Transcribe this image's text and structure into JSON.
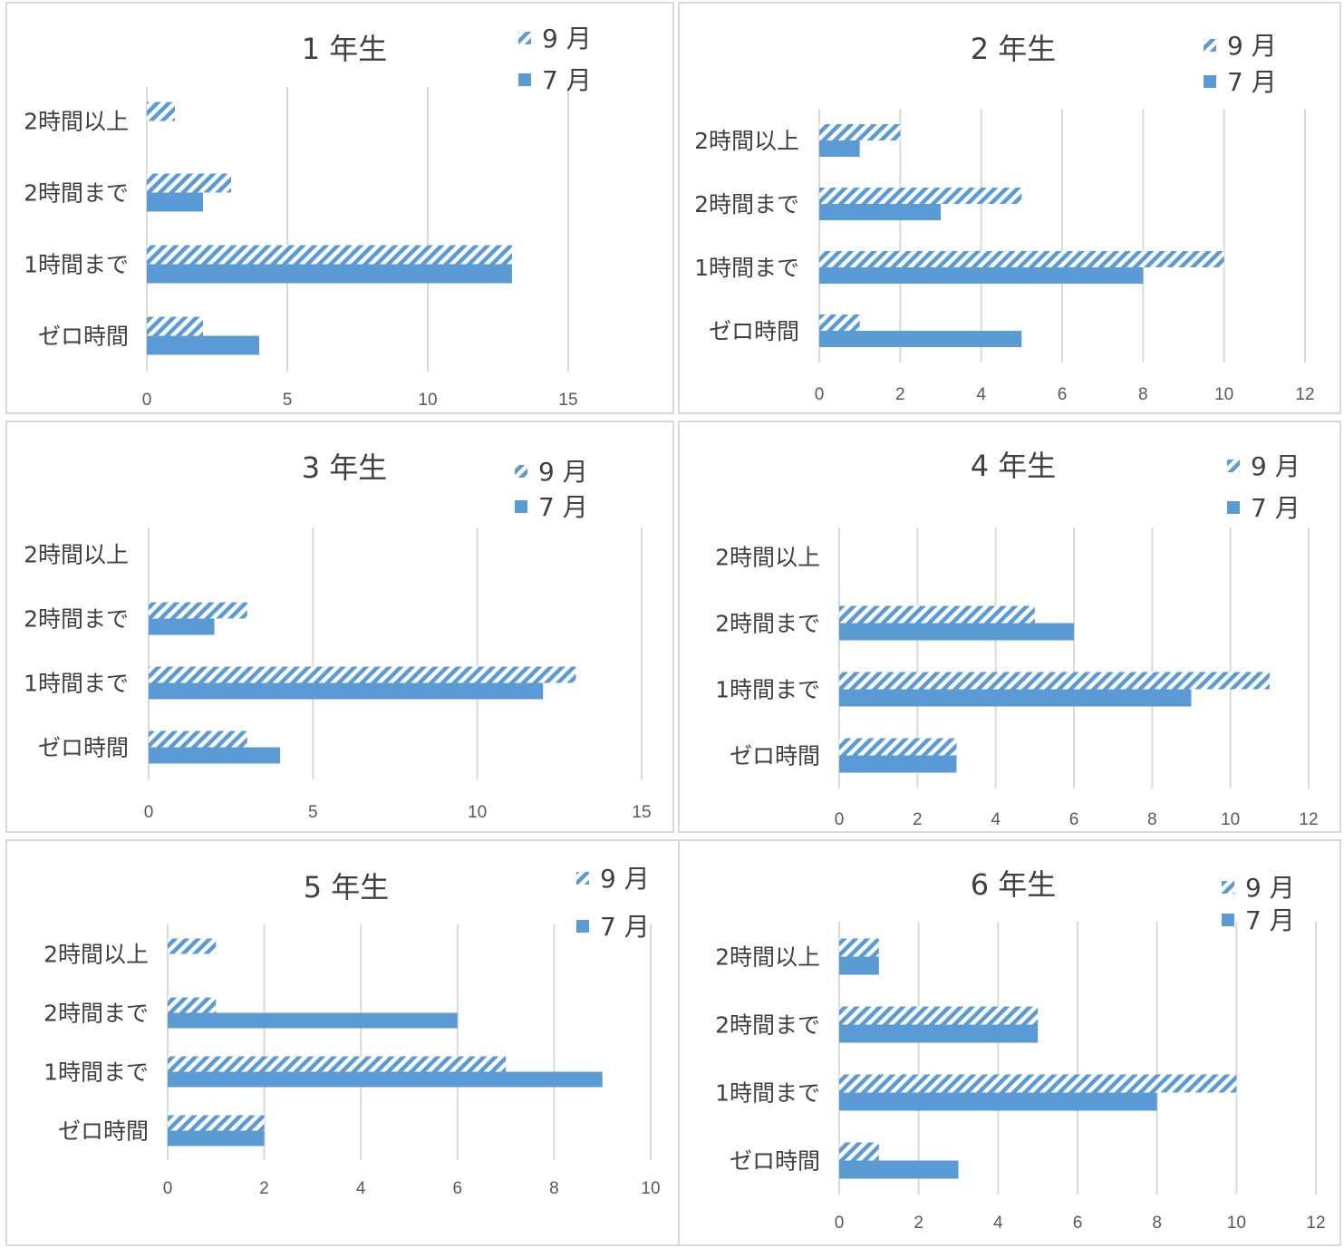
{
  "colors": {
    "bar": "#5b9bd5",
    "grid": "#d9d9d9",
    "text": "#404040"
  },
  "legend": {
    "hatched": {
      "label": "9 月",
      "pattern": "diagonal-hatch"
    },
    "solid": {
      "label": "7 月",
      "pattern": "solid"
    }
  },
  "chart_data": [
    {
      "type": "bar",
      "orientation": "horizontal",
      "title": "1 年生",
      "categories": [
        "ゼロ時間",
        "1時間まで",
        "2時間まで",
        "2時間以上"
      ],
      "series": [
        {
          "name": "9 月",
          "values": [
            2,
            13,
            3,
            1
          ]
        },
        {
          "name": "7 月",
          "values": [
            4,
            13,
            2,
            0
          ]
        }
      ],
      "xticks": [
        "0",
        "5",
        "10",
        "15"
      ],
      "xlim": [
        0,
        15
      ],
      "grid": true,
      "legend_position": "top-right"
    },
    {
      "type": "bar",
      "orientation": "horizontal",
      "title": "2 年生",
      "categories": [
        "ゼロ時間",
        "1時間まで",
        "2時間まで",
        "2時間以上"
      ],
      "series": [
        {
          "name": "9 月",
          "values": [
            1,
            10,
            5,
            2
          ]
        },
        {
          "name": "7 月",
          "values": [
            5,
            8,
            3,
            1
          ]
        }
      ],
      "xticks": [
        "0",
        "2",
        "4",
        "6",
        "8",
        "10",
        "12"
      ],
      "xlim": [
        0,
        12
      ],
      "grid": true,
      "legend_position": "top-right"
    },
    {
      "type": "bar",
      "orientation": "horizontal",
      "title": "3 年生",
      "categories": [
        "ゼロ時間",
        "1時間まで",
        "2時間まで",
        "2時間以上"
      ],
      "series": [
        {
          "name": "9 月",
          "values": [
            3,
            13,
            3,
            0
          ]
        },
        {
          "name": "7 月",
          "values": [
            4,
            12,
            2,
            0
          ]
        }
      ],
      "xticks": [
        "0",
        "5",
        "10",
        "15"
      ],
      "xlim": [
        0,
        15
      ],
      "grid": true,
      "legend_position": "top-right"
    },
    {
      "type": "bar",
      "orientation": "horizontal",
      "title": "4 年生",
      "categories": [
        "ゼロ時間",
        "1時間まで",
        "2時間まで",
        "2時間以上"
      ],
      "series": [
        {
          "name": "9 月",
          "values": [
            3,
            11,
            5,
            0
          ]
        },
        {
          "name": "7 月",
          "values": [
            3,
            9,
            6,
            0
          ]
        }
      ],
      "xticks": [
        "0",
        "2",
        "4",
        "6",
        "8",
        "10",
        "12"
      ],
      "xlim": [
        0,
        12
      ],
      "grid": true,
      "legend_position": "top-right"
    },
    {
      "type": "bar",
      "orientation": "horizontal",
      "title": "5 年生",
      "categories": [
        "ゼロ時間",
        "1時間まで",
        "2時間まで",
        "2時間以上"
      ],
      "series": [
        {
          "name": "9 月",
          "values": [
            2,
            7,
            1,
            1
          ]
        },
        {
          "name": "7 月",
          "values": [
            2,
            9,
            6,
            0
          ]
        }
      ],
      "xticks": [
        "0",
        "2",
        "4",
        "6",
        "8",
        "10"
      ],
      "xlim": [
        0,
        10
      ],
      "grid": true,
      "legend_position": "top-right"
    },
    {
      "type": "bar",
      "orientation": "horizontal",
      "title": "6 年生",
      "categories": [
        "ゼロ時間",
        "1時間まで",
        "2時間まで",
        "2時間以上"
      ],
      "series": [
        {
          "name": "9 月",
          "values": [
            1,
            10,
            5,
            1
          ]
        },
        {
          "name": "7 月",
          "values": [
            3,
            8,
            5,
            1
          ]
        }
      ],
      "xticks": [
        "0",
        "2",
        "4",
        "6",
        "8",
        "10",
        "12"
      ],
      "xlim": [
        0,
        12
      ],
      "grid": true,
      "legend_position": "top-right"
    }
  ]
}
